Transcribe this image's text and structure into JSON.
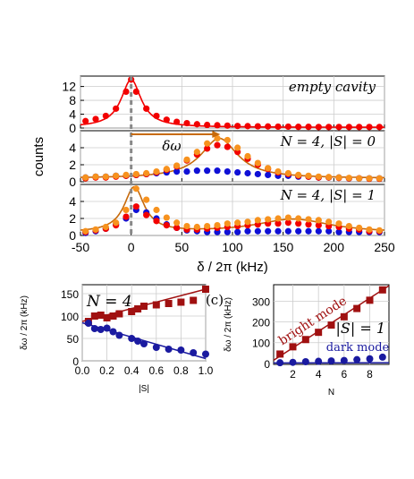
{
  "colors": {
    "red": "#f20000",
    "blue": "#0f10d6",
    "orange": "#f7921e",
    "orange_line": "#c76a0b",
    "dark_red": "#a01010",
    "navy": "#1a1aa0",
    "grid": "#cccccc",
    "dashed": "#888888"
  },
  "chart_data": [
    {
      "id": "spectra",
      "type": "scatter",
      "xlabel": "δ / 2π (kHz)",
      "ylabel": "counts",
      "xlim": [
        -50,
        250
      ],
      "xticks": [
        -50,
        0,
        50,
        100,
        150,
        200,
        250
      ],
      "arrow_label": "δω",
      "panels": [
        {
          "annotation": "empty cavity",
          "ylim": [
            0,
            15
          ],
          "yticks": [
            0,
            4,
            8,
            12
          ],
          "series": [
            {
              "color": "red",
              "fit": true,
              "x": [
                -45,
                -35,
                -25,
                -15,
                -5,
                0,
                5,
                15,
                25,
                35,
                45,
                55,
                65,
                75,
                85,
                95,
                105,
                115,
                125,
                135,
                145,
                155,
                165,
                175,
                185,
                195,
                205,
                215,
                225,
                235,
                245
              ],
              "y": [
                2.0,
                2.6,
                3.5,
                5.6,
                10.5,
                14.0,
                10.5,
                5.6,
                3.5,
                2.4,
                1.8,
                1.4,
                1.1,
                0.9,
                0.8,
                0.7,
                0.6,
                0.55,
                0.5,
                0.45,
                0.4,
                0.4,
                0.35,
                0.35,
                0.3,
                0.3,
                0.3,
                0.3,
                0.3,
                0.3,
                0.3
              ]
            }
          ]
        },
        {
          "annotation": "N = 4, |S| = 0",
          "ylim": [
            0,
            6
          ],
          "yticks": [
            0,
            2,
            4
          ],
          "series": [
            {
              "color": "orange",
              "fit": true,
              "x": [
                -45,
                -35,
                -25,
                -15,
                -5,
                5,
                15,
                25,
                35,
                45,
                55,
                65,
                75,
                85,
                95,
                105,
                115,
                125,
                135,
                145,
                155,
                165,
                175,
                185,
                195,
                205,
                215,
                225,
                235,
                245
              ],
              "y": [
                0.5,
                0.6,
                0.6,
                0.7,
                0.8,
                0.9,
                1.0,
                1.2,
                1.5,
                1.9,
                2.6,
                3.5,
                4.5,
                5.1,
                4.9,
                4.0,
                3.0,
                2.2,
                1.6,
                1.2,
                1.0,
                0.8,
                0.7,
                0.6,
                0.55,
                0.5,
                0.45,
                0.4,
                0.4,
                0.4
              ]
            },
            {
              "color": "red",
              "fit": false,
              "x": [
                -45,
                -35,
                -25,
                -15,
                -5,
                5,
                15,
                25,
                35,
                45,
                55,
                65,
                75,
                85,
                95,
                105,
                115,
                125,
                135,
                145,
                155,
                165,
                175,
                185,
                195,
                205,
                215,
                225,
                235,
                245
              ],
              "y": [
                0.4,
                0.5,
                0.5,
                0.6,
                0.7,
                0.8,
                0.9,
                1.1,
                1.4,
                1.8,
                2.5,
                3.2,
                3.9,
                4.3,
                4.1,
                3.5,
                2.7,
                2.0,
                1.5,
                1.1,
                0.9,
                0.7,
                0.6,
                0.5,
                0.5,
                0.45,
                0.4,
                0.4,
                0.35,
                0.35
              ]
            },
            {
              "color": "blue",
              "fit": false,
              "x": [
                -45,
                -35,
                -25,
                -15,
                -5,
                5,
                15,
                25,
                35,
                45,
                55,
                65,
                75,
                85,
                95,
                105,
                115,
                125,
                135,
                145,
                155,
                165,
                175,
                185,
                195,
                205,
                215,
                225,
                235,
                245
              ],
              "y": [
                0.5,
                0.6,
                0.6,
                0.7,
                0.7,
                0.8,
                0.9,
                1.0,
                1.1,
                1.2,
                1.2,
                1.3,
                1.3,
                1.3,
                1.2,
                1.1,
                1.0,
                0.9,
                0.8,
                0.7,
                0.7,
                0.6,
                0.6,
                0.5,
                0.5,
                0.5,
                0.4,
                0.4,
                0.4,
                0.4
              ]
            }
          ]
        },
        {
          "annotation": "N = 4, |S| = 1",
          "ylim": [
            0,
            6
          ],
          "yticks": [
            0,
            2,
            4
          ],
          "series": [
            {
              "color": "orange",
              "fit": true,
              "x": [
                -45,
                -35,
                -25,
                -15,
                -5,
                5,
                15,
                25,
                35,
                45,
                55,
                65,
                75,
                85,
                95,
                105,
                115,
                125,
                135,
                145,
                155,
                165,
                175,
                185,
                195,
                205,
                215,
                225,
                235,
                245
              ],
              "y": [
                0.5,
                0.7,
                1.0,
                1.5,
                3.0,
                5.5,
                4.2,
                3.0,
                2.1,
                1.5,
                1.1,
                1.0,
                1.1,
                1.2,
                1.4,
                1.5,
                1.6,
                1.8,
                1.9,
                2.0,
                2.1,
                2.0,
                1.9,
                1.8,
                1.6,
                1.4,
                1.1,
                0.9,
                0.7,
                0.6
              ]
            },
            {
              "color": "red",
              "fit": false,
              "x": [
                -45,
                -35,
                -25,
                -15,
                -5,
                5,
                15,
                25,
                35,
                45,
                55,
                65,
                75,
                85,
                95,
                105,
                115,
                125,
                135,
                145,
                155,
                165,
                175,
                185,
                195,
                205,
                215,
                225,
                235,
                245
              ],
              "y": [
                0.4,
                0.6,
                0.8,
                1.2,
                2.2,
                3.4,
                2.4,
                1.7,
                1.2,
                0.9,
                0.7,
                0.7,
                0.8,
                0.9,
                1.0,
                1.1,
                1.2,
                1.3,
                1.4,
                1.4,
                1.5,
                1.4,
                1.3,
                1.2,
                1.1,
                1.0,
                0.8,
                0.7,
                0.5,
                0.5
              ]
            },
            {
              "color": "blue",
              "fit": false,
              "x": [
                -45,
                -35,
                -25,
                -15,
                -5,
                5,
                15,
                25,
                35,
                45,
                55,
                65,
                75,
                85,
                95,
                105,
                115,
                125,
                135,
                145,
                155,
                165,
                175,
                185,
                195,
                205,
                215,
                225,
                235,
                245
              ],
              "y": [
                0.3,
                0.5,
                0.8,
                1.3,
                2.0,
                3.0,
                2.7,
                2.0,
                1.3,
                0.9,
                0.6,
                0.5,
                0.4,
                0.4,
                0.4,
                0.4,
                0.5,
                0.5,
                0.5,
                0.5,
                0.5,
                0.5,
                0.5,
                0.5,
                0.5,
                0.4,
                0.4,
                0.4,
                0.4,
                0.4
              ]
            }
          ]
        }
      ]
    },
    {
      "id": "vs-S",
      "type": "scatter",
      "xlabel": "|S|",
      "ylabel": "δω / 2π (kHz)",
      "annotation": "N = 4",
      "xlim": [
        0,
        1.0
      ],
      "ylim": [
        0,
        170
      ],
      "xticks": [
        "0.0",
        "0.2",
        "0.4",
        "0.6",
        "0.8",
        "1.0"
      ],
      "yticks": [
        0,
        50,
        100,
        150
      ],
      "series": [
        {
          "color": "dark_red",
          "marker": "square",
          "x": [
            0.05,
            0.1,
            0.15,
            0.2,
            0.25,
            0.3,
            0.4,
            0.45,
            0.5,
            0.6,
            0.7,
            0.8,
            0.9,
            1.0
          ],
          "y": [
            88,
            100,
            102,
            96,
            100,
            105,
            110,
            116,
            122,
            125,
            128,
            131,
            135,
            160
          ]
        },
        {
          "color": "navy",
          "marker": "circle",
          "x": [
            0.05,
            0.1,
            0.15,
            0.2,
            0.25,
            0.3,
            0.4,
            0.45,
            0.5,
            0.6,
            0.7,
            0.8,
            0.9,
            1.0
          ],
          "y": [
            84,
            72,
            70,
            73,
            65,
            57,
            50,
            44,
            38,
            30,
            26,
            24,
            18,
            15
          ]
        }
      ],
      "lines": [
        {
          "color": "dark_red",
          "x": [
            0,
            1.0
          ],
          "y": [
            88,
            160
          ]
        },
        {
          "color": "navy",
          "x": [
            0,
            1.0
          ],
          "y": [
            85,
            5
          ]
        }
      ]
    },
    {
      "id": "vs-N",
      "type": "scatter",
      "panel_label": "(c)",
      "xlabel": "N",
      "ylabel": "δω / 2π (kHz)",
      "annotation": "|S| = 1",
      "mode_labels": {
        "bright": "bright mode",
        "dark": "dark mode"
      },
      "xlim": [
        0.5,
        9.5
      ],
      "ylim": [
        -5,
        380
      ],
      "xticks": [
        2,
        4,
        6,
        8
      ],
      "yticks": [
        0,
        100,
        200,
        300
      ],
      "series": [
        {
          "color": "dark_red",
          "marker": "square",
          "x": [
            1,
            2,
            3,
            4,
            5,
            6,
            7,
            8,
            9
          ],
          "y": [
            45,
            80,
            115,
            150,
            185,
            225,
            265,
            305,
            355
          ]
        },
        {
          "color": "navy",
          "marker": "circle",
          "x": [
            1,
            2,
            3,
            4,
            5,
            6,
            7,
            8,
            9
          ],
          "y": [
            3,
            5,
            8,
            10,
            12,
            14,
            18,
            22,
            30
          ]
        }
      ],
      "lines": [
        {
          "color": "dark_red",
          "x": [
            0.5,
            9.5
          ],
          "y": [
            15,
            375
          ]
        },
        {
          "color": "navy",
          "x": [
            0.5,
            9.5
          ],
          "y": [
            2,
            3
          ]
        }
      ]
    }
  ]
}
